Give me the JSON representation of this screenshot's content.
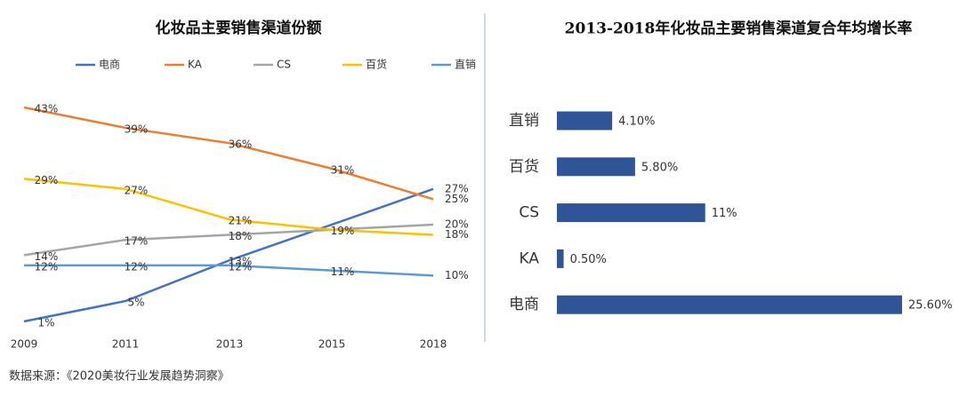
{
  "chart_data": [
    {
      "type": "line",
      "title": "化妆品主要销售渠道份额",
      "categories": [
        "2009",
        "2011",
        "2013",
        "2015",
        "2018"
      ],
      "series": [
        {
          "name": "电商",
          "color": "#4472c4",
          "values": [
            1,
            5,
            13,
            20,
            27
          ],
          "value_labels": [
            "1%",
            "5%",
            "13%",
            null,
            "27%"
          ]
        },
        {
          "name": "KA",
          "color": "#ed7d31",
          "values": [
            43,
            39,
            36,
            31,
            25
          ],
          "value_labels": [
            "43%",
            "39%",
            "36%",
            "31%",
            "25%"
          ]
        },
        {
          "name": "CS",
          "color": "#a5a5a5",
          "values": [
            14,
            17,
            18,
            19,
            20
          ],
          "value_labels": [
            "14%",
            "17%",
            "18%",
            null,
            "20%"
          ]
        },
        {
          "name": "百货",
          "color": "#ffc000",
          "values": [
            29,
            27,
            21,
            19,
            18
          ],
          "value_labels": [
            "29%",
            "27%",
            "21%",
            "19%",
            "18%"
          ]
        },
        {
          "name": "直销",
          "color": "#5b9bd5",
          "values": [
            12,
            12,
            12,
            11,
            10
          ],
          "value_labels": [
            "12%",
            "12%",
            "12%",
            "11%",
            "10%"
          ]
        }
      ]
    },
    {
      "type": "hbar",
      "title": "2013-2018年化妆品主要销售渠道复合年均增长率",
      "categories": [
        "直销",
        "百货",
        "CS",
        "KA",
        "电商"
      ],
      "values": [
        4.1,
        5.8,
        11,
        0.5,
        25.6
      ],
      "value_labels": [
        "4.10%",
        "5.80%",
        "11%",
        "0.50%",
        "25.60%"
      ],
      "color": "#2f5597"
    }
  ],
  "source": "数据来源：《2020美妆行业发展趋势洞察》"
}
